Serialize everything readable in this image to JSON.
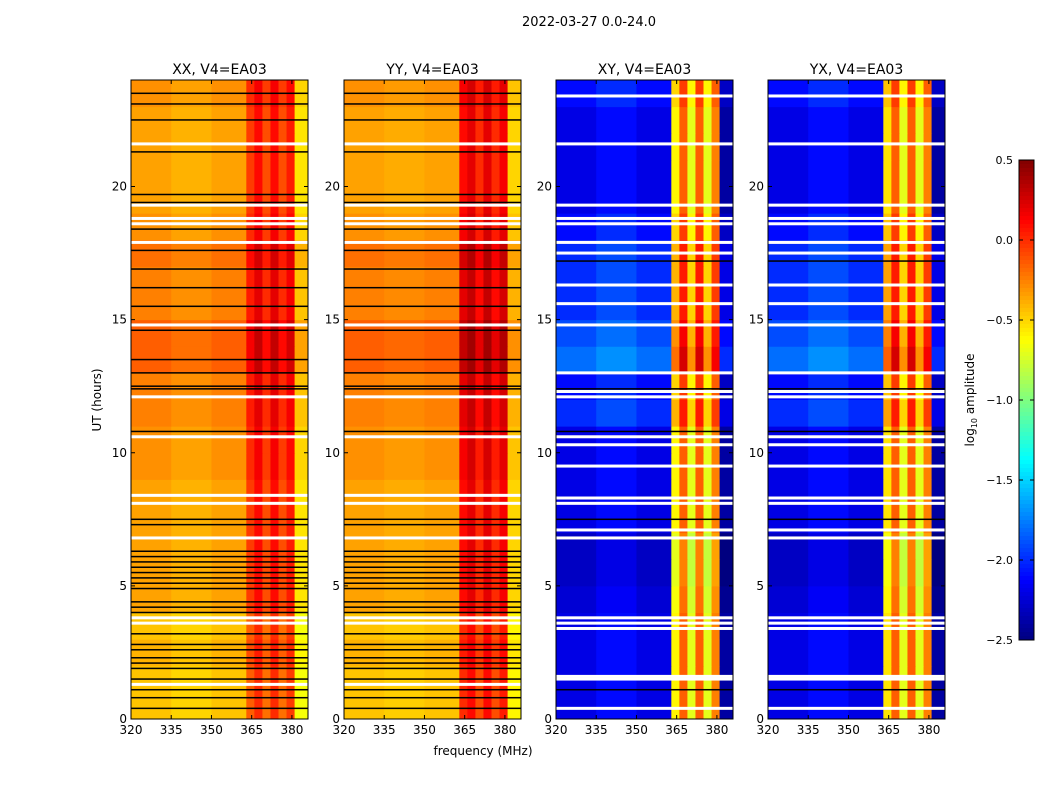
{
  "chart_data": {
    "type": "heatmap",
    "title": "2022-03-27 0.0-24.0",
    "xlabel": "frequency (MHz)",
    "ylabel": "UT (hours)",
    "xlim": [
      320,
      386
    ],
    "ylim": [
      0,
      24
    ],
    "xticks": [
      320,
      335,
      350,
      365,
      380
    ],
    "yticks": [
      0,
      5,
      10,
      15,
      20
    ],
    "colorbar": {
      "label_main": "log",
      "label_sub": "10",
      "label_rest": " amplitude",
      "range": [
        -2.5,
        0.5
      ],
      "ticks": [
        0.5,
        0.0,
        -0.5,
        -1.0,
        -1.5,
        -2.0,
        -2.5
      ],
      "tick_labels": [
        "0.5",
        "0.0",
        "−0.5",
        "−1.0",
        "−1.5",
        "−2.0",
        "−2.5"
      ],
      "colormap": "jet"
    },
    "frequency_bin_edges_mhz": [
      320,
      335,
      350,
      363,
      366,
      369,
      372,
      375,
      378,
      381,
      386
    ],
    "panels": [
      {
        "title": "XX, V4=EA03",
        "column_levels": [
          -0.35,
          -0.4,
          -0.35,
          -0.05,
          0.1,
          -0.1,
          0.1,
          -0.1,
          0.05,
          -0.55
        ],
        "hour_offsets": [
          -0.1,
          -0.1,
          -0.05,
          -0.1,
          0,
          0,
          0,
          0,
          0,
          0.05,
          0.05,
          0.1,
          0.1,
          0.2,
          0.2,
          0.1,
          0.1,
          0.15,
          0.05,
          0,
          0,
          0,
          0,
          0.05
        ],
        "flagged_black_hours": [
          0.4,
          0.8,
          1.1,
          1.5,
          1.9,
          2.1,
          2.3,
          2.6,
          2.8,
          3.2,
          4.0,
          4.2,
          4.4,
          4.9,
          5.1,
          5.3,
          5.5,
          5.7,
          5.9,
          6.1,
          6.3,
          7.3,
          7.5,
          10.8,
          12.4,
          12.5,
          13.0,
          13.5,
          14.6,
          15.5,
          16.2,
          16.9,
          17.6,
          18.4,
          19.4,
          19.7,
          21.3,
          22.5,
          23.1,
          23.5
        ],
        "missing_white_hours": [
          1.3,
          3.6,
          3.8,
          6.8,
          8.1,
          8.4,
          10.6,
          12.1,
          14.8,
          17.9,
          18.6,
          18.8,
          19.3,
          21.6
        ]
      },
      {
        "title": "YY, V4=EA03",
        "column_levels": [
          -0.35,
          -0.38,
          -0.35,
          0.1,
          0.2,
          0.0,
          0.2,
          0.0,
          0.15,
          -0.5
        ],
        "hour_offsets": [
          -0.1,
          -0.1,
          -0.05,
          -0.1,
          0,
          0,
          0,
          0,
          0,
          0.05,
          0.05,
          0.1,
          0.1,
          0.2,
          0.2,
          0.1,
          0.1,
          0.15,
          0.05,
          0,
          0,
          0,
          0,
          0.05
        ],
        "flagged_black_hours": [
          0.4,
          0.8,
          1.1,
          1.5,
          1.9,
          2.1,
          2.3,
          2.6,
          2.8,
          3.2,
          4.0,
          4.2,
          4.4,
          4.9,
          5.1,
          5.3,
          5.5,
          5.7,
          5.9,
          6.1,
          6.3,
          7.3,
          7.5,
          10.8,
          12.4,
          12.5,
          13.0,
          13.5,
          14.6,
          15.5,
          16.2,
          16.9,
          17.6,
          18.4,
          19.4,
          19.7,
          21.3,
          22.5,
          23.1,
          23.5
        ],
        "missing_white_hours": [
          1.3,
          3.6,
          3.8,
          6.8,
          8.1,
          8.4,
          10.6,
          12.1,
          14.8,
          17.9,
          18.6,
          18.8,
          19.3,
          21.6
        ]
      },
      {
        "title": "XY, V4=EA03",
        "column_levels": [
          -2.2,
          -2.1,
          -2.2,
          -0.6,
          -0.15,
          -0.7,
          -0.15,
          -0.7,
          -0.25,
          -2.4
        ],
        "hour_offsets": [
          0,
          0,
          0,
          0,
          -0.05,
          -0.1,
          -0.1,
          0,
          0,
          0,
          0,
          0.2,
          0.1,
          0.4,
          0.3,
          0.2,
          0.2,
          0.2,
          0.1,
          0,
          0,
          0,
          0,
          0.1
        ],
        "flagged_black_hours": [
          1.1,
          7.5,
          10.8,
          12.4,
          17.2
        ],
        "missing_white_hours": [
          0.4,
          1.5,
          1.6,
          3.4,
          3.6,
          3.8,
          6.8,
          7.1,
          8.1,
          8.3,
          9.5,
          10.3,
          10.6,
          12.1,
          12.3,
          13.0,
          14.8,
          15.6,
          16.3,
          17.5,
          17.9,
          18.6,
          18.8,
          19.3,
          21.6,
          23.4
        ]
      },
      {
        "title": "YX, V4=EA03",
        "column_levels": [
          -2.2,
          -2.1,
          -2.2,
          -0.55,
          -0.15,
          -0.7,
          -0.15,
          -0.7,
          -0.25,
          -2.4
        ],
        "hour_offsets": [
          0,
          0,
          0,
          0,
          -0.05,
          -0.1,
          -0.1,
          0,
          0,
          0,
          0,
          0.2,
          0.1,
          0.4,
          0.3,
          0.2,
          0.2,
          0.2,
          0.1,
          0,
          0,
          0,
          0,
          0.1
        ],
        "flagged_black_hours": [
          1.1,
          7.5,
          10.8,
          12.4,
          17.2
        ],
        "missing_white_hours": [
          0.4,
          1.5,
          1.6,
          3.4,
          3.6,
          3.8,
          6.8,
          7.1,
          8.1,
          8.3,
          9.5,
          10.3,
          10.6,
          12.1,
          12.3,
          13.0,
          14.8,
          15.6,
          16.3,
          17.5,
          17.9,
          18.6,
          18.8,
          19.3,
          21.6,
          23.4
        ]
      }
    ]
  }
}
